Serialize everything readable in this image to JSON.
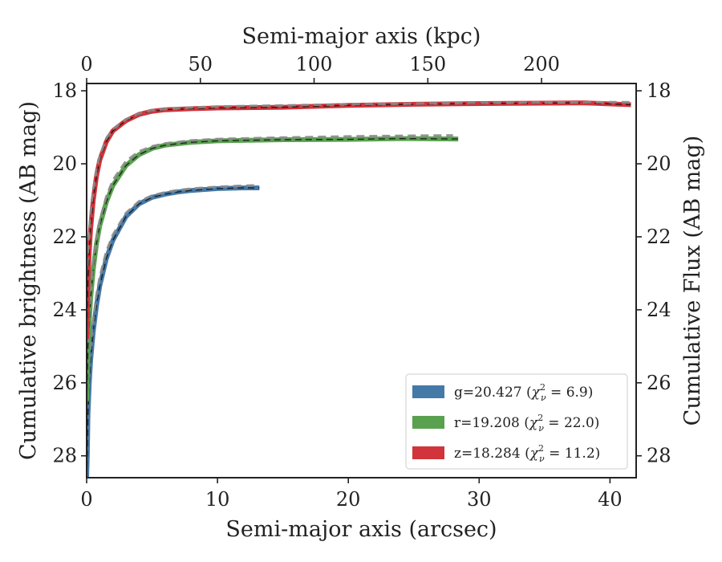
{
  "chart_data": {
    "type": "line",
    "title": "",
    "xlabel": "Semi-major axis (arcsec)",
    "ylabel": "Cumulative brightness (AB mag)",
    "x2label": "Semi-major axis (kpc)",
    "y2label": "Cumulative Flux (AB mag)",
    "xlim": [
      0,
      42
    ],
    "ylim": [
      28.6,
      17.8
    ],
    "x2lim": [
      0,
      241.6
    ],
    "xticks": [
      "0",
      "10",
      "20",
      "30",
      "40"
    ],
    "yticks": [
      "18",
      "20",
      "22",
      "24",
      "26",
      "28"
    ],
    "x2ticks": [
      "0",
      "50",
      "100",
      "150",
      "200"
    ],
    "y2ticks": [
      "18",
      "20",
      "22",
      "24",
      "26",
      "28"
    ],
    "y_inverted": true,
    "legend_position": "lower-right",
    "series": [
      {
        "name": "g=20.427",
        "chi2": "6.9",
        "color": "#4479a8",
        "x": [
          0.0,
          0.05,
          0.1,
          0.2,
          0.3,
          0.5,
          0.75,
          1.0,
          1.5,
          2.0,
          3.0,
          4.0,
          5.0,
          6.0,
          7.0,
          8.0,
          10.0,
          12.0,
          13.2
        ],
        "y": [
          28.6,
          28.0,
          26.9,
          26.0,
          25.4,
          24.6,
          23.9,
          23.35,
          22.6,
          22.1,
          21.45,
          21.1,
          20.92,
          20.83,
          20.77,
          20.73,
          20.68,
          20.66,
          20.66
        ],
        "model_x": [
          0.05,
          0.1,
          0.2,
          0.3,
          0.5,
          0.75,
          1.0,
          1.5,
          2.0,
          3.0,
          4.0,
          5.0,
          6.0,
          7.0,
          8.0,
          10.0,
          12.0,
          13.0
        ],
        "model_y": [
          26.5,
          26.0,
          25.4,
          25.0,
          24.3,
          23.6,
          23.1,
          22.4,
          21.95,
          21.35,
          21.03,
          20.87,
          20.78,
          20.72,
          20.68,
          20.63,
          20.6,
          20.59
        ]
      },
      {
        "name": "r=19.208",
        "chi2": "22.0",
        "color": "#59a14f",
        "x": [
          0.0,
          0.05,
          0.1,
          0.2,
          0.3,
          0.5,
          0.75,
          1.0,
          1.5,
          2.0,
          3.0,
          4.0,
          5.0,
          6.0,
          8.0,
          10.0,
          15.0,
          20.0,
          24.0,
          28.4
        ],
        "y": [
          26.5,
          25.9,
          25.0,
          24.3,
          23.7,
          22.9,
          22.2,
          21.7,
          21.05,
          20.6,
          20.05,
          19.75,
          19.58,
          19.49,
          19.41,
          19.37,
          19.34,
          19.33,
          19.31,
          19.32
        ],
        "model_x": [
          0.05,
          0.1,
          0.2,
          0.3,
          0.5,
          0.75,
          1.0,
          1.5,
          2.0,
          3.0,
          4.0,
          5.0,
          6.0,
          8.0,
          10.0,
          15.0,
          20.0,
          25.0,
          28.0
        ],
        "model_y": [
          24.9,
          24.5,
          23.9,
          23.4,
          22.7,
          22.05,
          21.55,
          20.9,
          20.45,
          19.93,
          19.66,
          19.52,
          19.44,
          19.36,
          19.32,
          19.28,
          19.25,
          19.23,
          19.22
        ]
      },
      {
        "name": "z=18.284",
        "chi2": "11.2",
        "color": "#d1343a",
        "x": [
          0.0,
          0.05,
          0.1,
          0.2,
          0.3,
          0.5,
          0.75,
          1.0,
          1.5,
          2.0,
          3.0,
          4.0,
          5.0,
          6.0,
          8.0,
          10.0,
          15.0,
          20.0,
          25.0,
          30.0,
          35.0,
          38.0,
          41.6
        ],
        "y": [
          24.8,
          24.0,
          23.2,
          22.4,
          21.8,
          21.0,
          20.35,
          19.9,
          19.4,
          19.1,
          18.82,
          18.65,
          18.56,
          18.52,
          18.49,
          18.47,
          18.45,
          18.4,
          18.37,
          18.35,
          18.34,
          18.33,
          18.38
        ],
        "model_x": [
          0.05,
          0.1,
          0.2,
          0.3,
          0.5,
          0.75,
          1.0,
          1.5,
          2.0,
          3.0,
          4.0,
          5.0,
          6.0,
          8.0,
          10.0,
          15.0,
          20.0,
          25.0,
          30.0,
          35.0,
          41.6
        ],
        "model_y": [
          22.8,
          22.4,
          21.8,
          21.35,
          20.7,
          20.15,
          19.8,
          19.3,
          19.05,
          18.78,
          18.63,
          18.54,
          18.5,
          18.46,
          18.43,
          18.4,
          18.37,
          18.35,
          18.33,
          18.32,
          18.31
        ]
      }
    ]
  }
}
